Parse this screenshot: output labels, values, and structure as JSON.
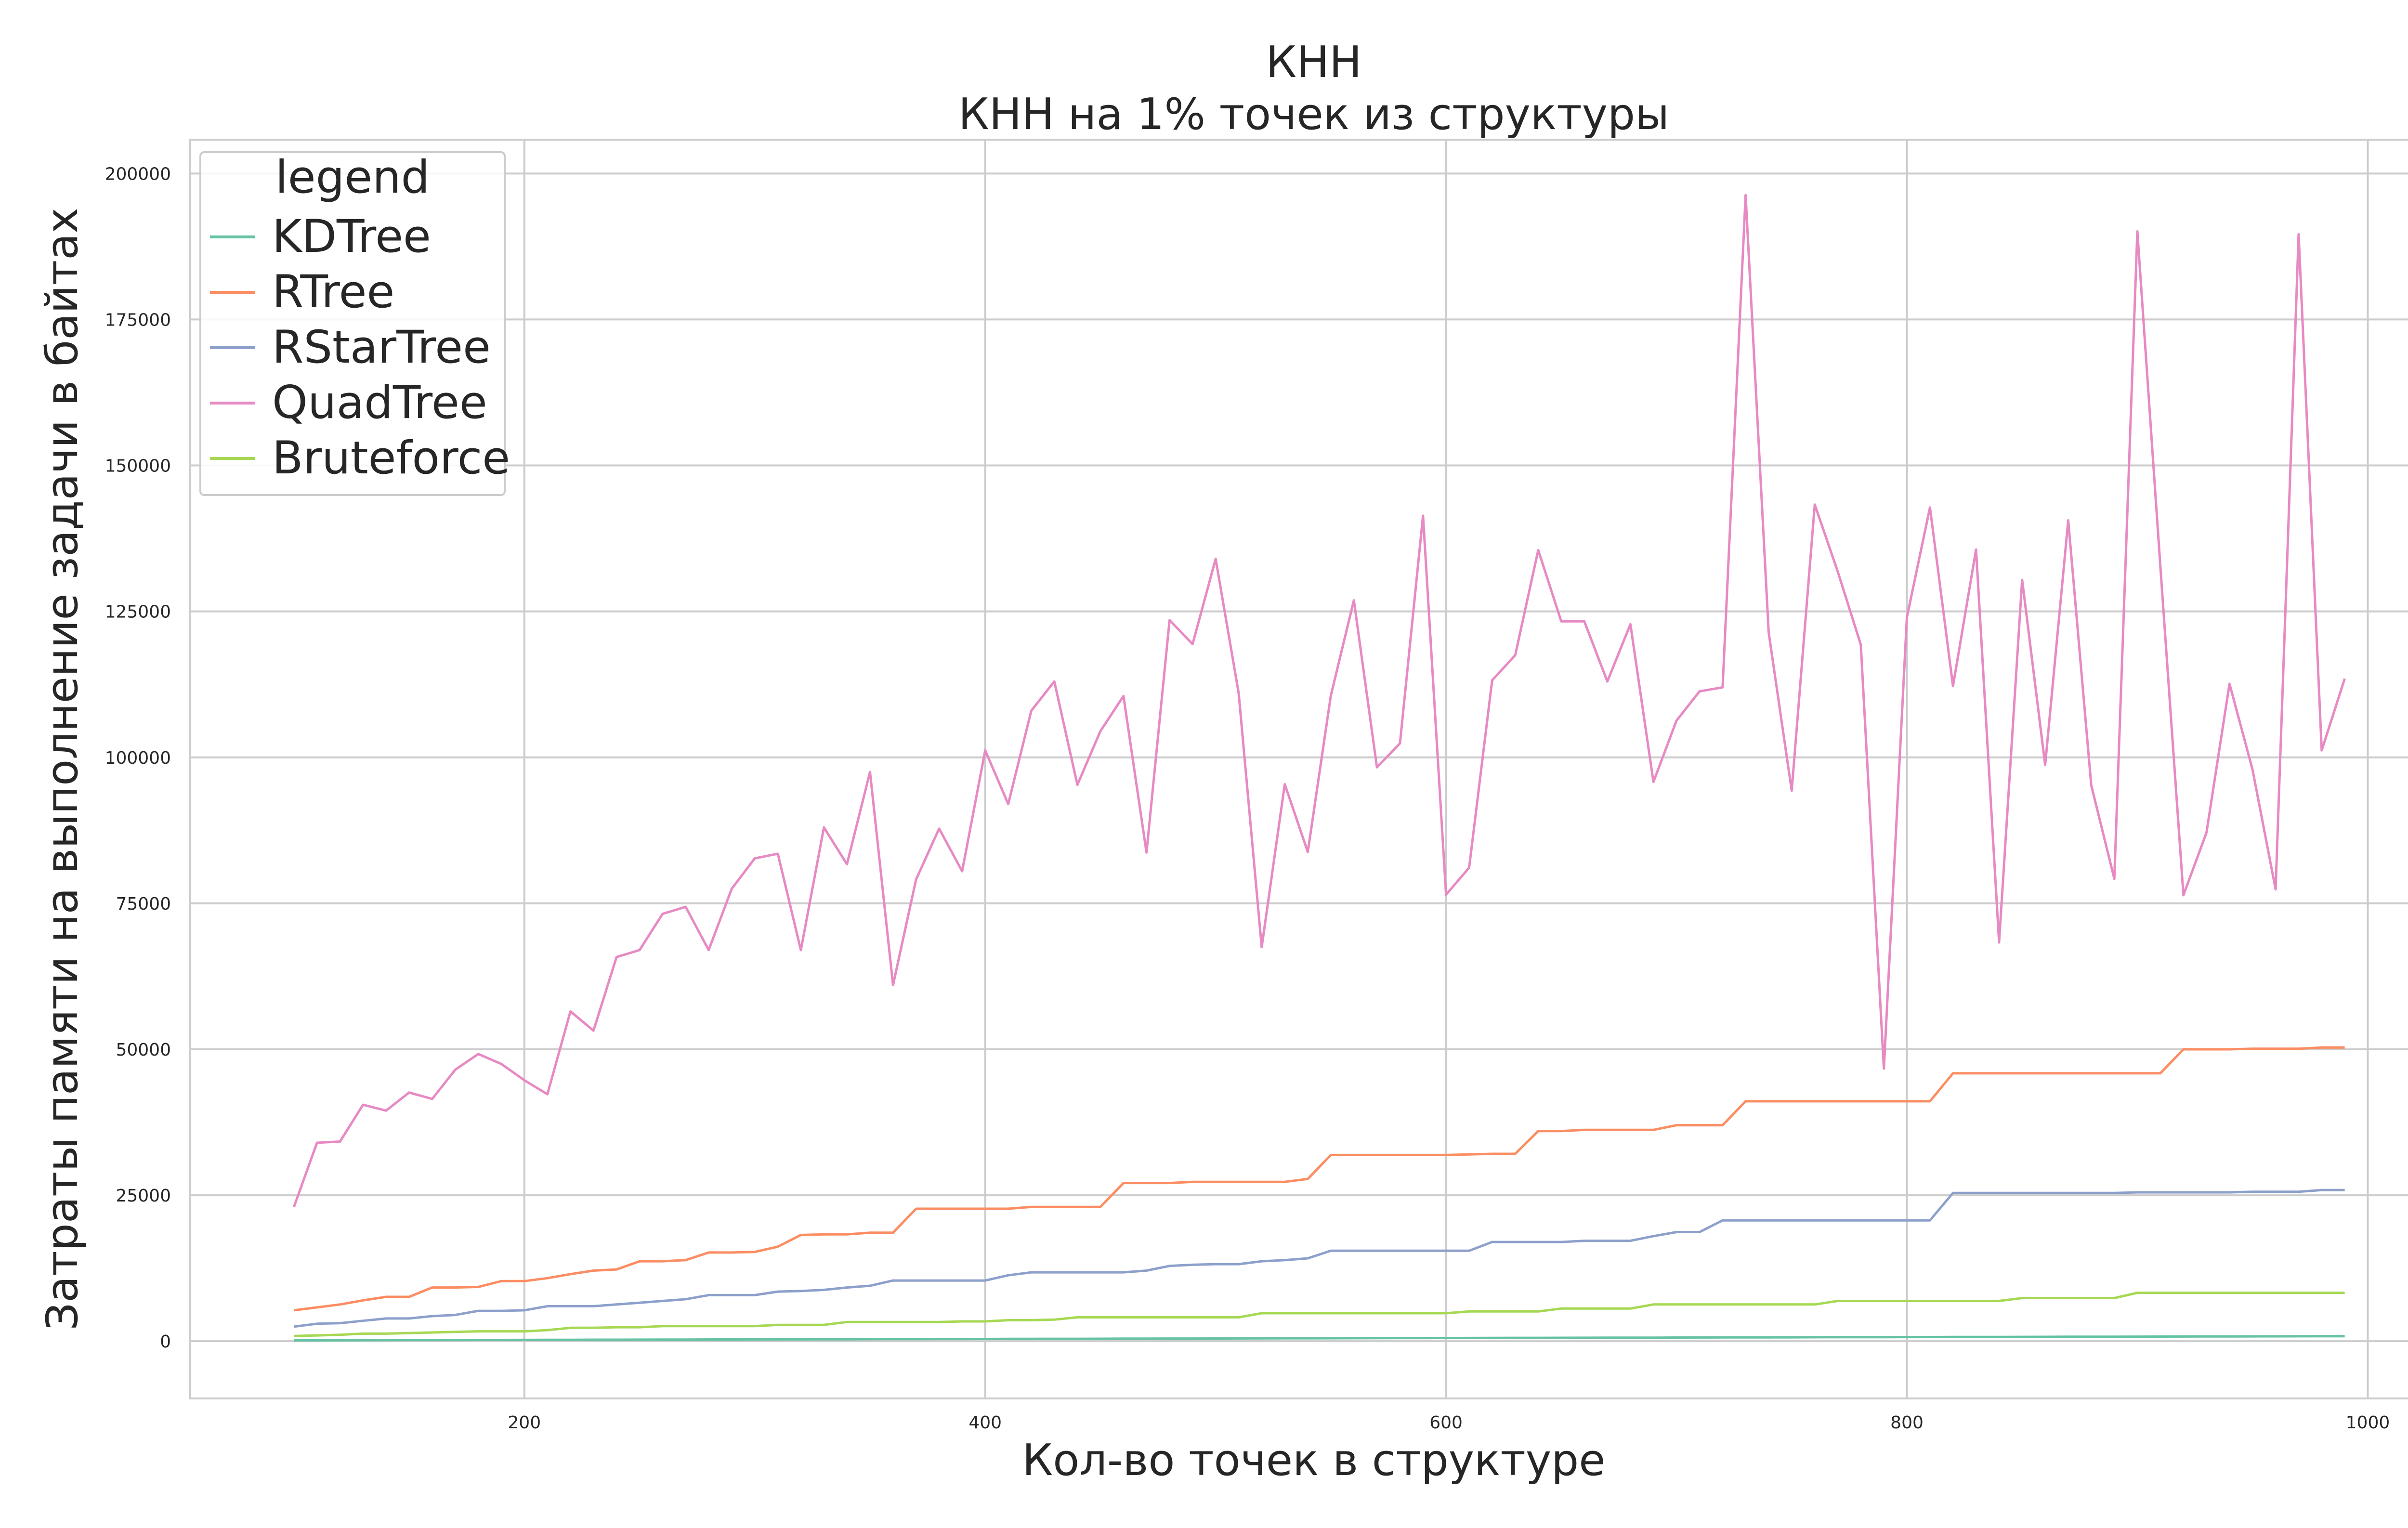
{
  "chart_data": {
    "type": "line",
    "title": "КНН",
    "subtitle": "КНН на 1% точек из структуры",
    "xlabel": "Кол-во точек в структуре",
    "ylabel": "Затраты памяти на выполнение задачи в байтах",
    "xlim": [
      55,
      1030
    ],
    "ylim": [
      -9800,
      205800
    ],
    "xticks": [
      200,
      400,
      600,
      800,
      1000
    ],
    "yticks": [
      0,
      25000,
      50000,
      75000,
      100000,
      125000,
      150000,
      175000,
      200000
    ],
    "grid": true,
    "legend_title": "legend",
    "legend_position": "top-left",
    "x": [
      100,
      110,
      120,
      130,
      140,
      150,
      160,
      170,
      180,
      190,
      200,
      210,
      220,
      230,
      240,
      250,
      260,
      270,
      280,
      290,
      300,
      310,
      320,
      330,
      340,
      350,
      360,
      370,
      380,
      390,
      400,
      410,
      420,
      430,
      440,
      450,
      460,
      470,
      480,
      490,
      500,
      510,
      520,
      530,
      540,
      550,
      560,
      570,
      580,
      590,
      600,
      610,
      620,
      630,
      640,
      650,
      660,
      670,
      680,
      690,
      700,
      710,
      720,
      730,
      740,
      750,
      760,
      770,
      780,
      790,
      800,
      810,
      820,
      830,
      840,
      850,
      860,
      870,
      880,
      890,
      900,
      910,
      920,
      930,
      940,
      950,
      960,
      970,
      980,
      990
    ],
    "series": [
      {
        "name": "KDTree",
        "color": "#66c2a5",
        "values": [
          150,
          160,
          170,
          180,
          190,
          200,
          200,
          210,
          220,
          220,
          230,
          240,
          250,
          260,
          260,
          270,
          280,
          290,
          300,
          300,
          310,
          320,
          330,
          340,
          340,
          350,
          360,
          370,
          380,
          380,
          390,
          400,
          410,
          420,
          420,
          430,
          440,
          450,
          460,
          460,
          470,
          480,
          490,
          500,
          500,
          510,
          520,
          530,
          540,
          540,
          550,
          560,
          570,
          580,
          580,
          590,
          600,
          610,
          620,
          620,
          630,
          640,
          650,
          660,
          660,
          670,
          680,
          690,
          700,
          700,
          710,
          720,
          730,
          740,
          740,
          750,
          760,
          770,
          780,
          780,
          790,
          800,
          810,
          820,
          820,
          830,
          840,
          850,
          860,
          860
        ]
      },
      {
        "name": "RTree",
        "color": "#fc8d62",
        "values": [
          5300,
          5800,
          6300,
          7000,
          7600,
          7600,
          9200,
          9200,
          9300,
          10300,
          10300,
          10800,
          11500,
          12100,
          12300,
          13700,
          13700,
          13900,
          15200,
          15200,
          15300,
          16200,
          18200,
          18300,
          18300,
          18600,
          18600,
          22700,
          22700,
          22700,
          22700,
          22700,
          23000,
          23000,
          23000,
          23000,
          27100,
          27100,
          27100,
          27300,
          27300,
          27300,
          27300,
          27300,
          27800,
          31900,
          31900,
          31900,
          31900,
          31900,
          31900,
          32000,
          32100,
          32100,
          36000,
          36000,
          36200,
          36200,
          36200,
          36200,
          37000,
          37000,
          37000,
          41100,
          41100,
          41100,
          41100,
          41100,
          41100,
          41100,
          41100,
          41100,
          45900,
          45900,
          45900,
          45900,
          45900,
          45900,
          45900,
          45900,
          45900,
          45900,
          50000,
          50000,
          50000,
          50100,
          50100,
          50100,
          50300,
          50300
        ]
      },
      {
        "name": "RStarTree",
        "color": "#8da0cb",
        "values": [
          2500,
          3000,
          3100,
          3500,
          3900,
          3900,
          4300,
          4500,
          5200,
          5200,
          5300,
          6000,
          6000,
          6000,
          6300,
          6600,
          6900,
          7200,
          7900,
          7900,
          7900,
          8500,
          8600,
          8800,
          9200,
          9500,
          10400,
          10400,
          10400,
          10400,
          10400,
          11300,
          11800,
          11800,
          11800,
          11800,
          11800,
          12100,
          12900,
          13100,
          13200,
          13200,
          13700,
          13900,
          14200,
          15500,
          15500,
          15500,
          15500,
          15500,
          15500,
          15500,
          17000,
          17000,
          17000,
          17000,
          17200,
          17200,
          17200,
          18000,
          18700,
          18700,
          20700,
          20700,
          20700,
          20700,
          20700,
          20700,
          20700,
          20700,
          20700,
          20700,
          25400,
          25400,
          25400,
          25400,
          25400,
          25400,
          25400,
          25400,
          25500,
          25500,
          25500,
          25500,
          25500,
          25600,
          25600,
          25600,
          25900,
          25900
        ]
      },
      {
        "name": "QuadTree",
        "color": "#e78ac3",
        "values": [
          23000,
          34000,
          34200,
          40500,
          39500,
          42600,
          41500,
          46500,
          49200,
          47500,
          44700,
          42300,
          56500,
          53200,
          65800,
          67000,
          73200,
          74400,
          67000,
          77500,
          82700,
          83500,
          67000,
          88000,
          81700,
          97500,
          61000,
          79100,
          87800,
          80500,
          101200,
          92000,
          108000,
          113000,
          95300,
          104500,
          110500,
          83700,
          123500,
          119400,
          134000,
          111000,
          67500,
          95400,
          83800,
          110600,
          126900,
          98300,
          102400,
          141400,
          76500,
          81100,
          113200,
          117500,
          135500,
          123300,
          123300,
          113000,
          122800,
          95800,
          106300,
          111300,
          112000,
          196300,
          121400,
          94300,
          143300,
          131800,
          119300,
          46700,
          124000,
          142800,
          112200,
          135600,
          68300,
          130400,
          98700,
          140600,
          95200,
          79200,
          190100,
          132700,
          76400,
          87100,
          112600,
          97900,
          77400,
          189600,
          101200,
          113500
        ]
      },
      {
        "name": "Bruteforce",
        "color": "#a6d854",
        "values": [
          900,
          1000,
          1100,
          1300,
          1300,
          1400,
          1500,
          1600,
          1700,
          1700,
          1700,
          1900,
          2300,
          2300,
          2400,
          2400,
          2600,
          2600,
          2600,
          2600,
          2600,
          2800,
          2800,
          2800,
          3300,
          3300,
          3300,
          3300,
          3300,
          3400,
          3400,
          3600,
          3600,
          3700,
          4100,
          4100,
          4100,
          4100,
          4100,
          4100,
          4100,
          4100,
          4800,
          4800,
          4800,
          4800,
          4800,
          4800,
          4800,
          4800,
          4800,
          5100,
          5100,
          5100,
          5100,
          5600,
          5600,
          5600,
          5600,
          6300,
          6300,
          6300,
          6300,
          6300,
          6300,
          6300,
          6300,
          6900,
          6900,
          6900,
          6900,
          6900,
          6900,
          6900,
          6900,
          7400,
          7400,
          7400,
          7400,
          7400,
          8300,
          8300,
          8300,
          8300,
          8300,
          8300,
          8300,
          8300,
          8300,
          8300
        ]
      }
    ]
  }
}
